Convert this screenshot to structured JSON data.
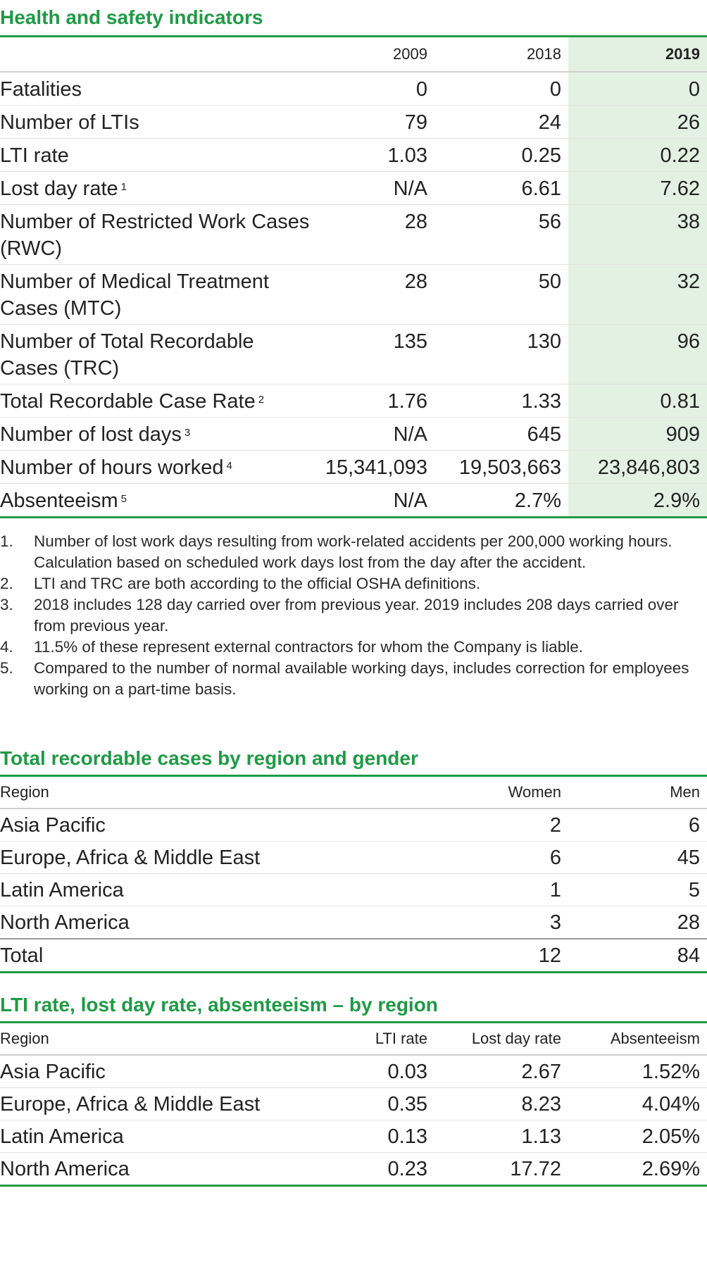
{
  "health": {
    "title": "Health and safety indicators",
    "years": [
      "2009",
      "2018",
      "2019"
    ],
    "rows": [
      {
        "label": "Fatalities",
        "sup": "",
        "v": [
          "0",
          "0",
          "0"
        ]
      },
      {
        "label": "Number of LTIs",
        "sup": "",
        "v": [
          "79",
          "24",
          "26"
        ]
      },
      {
        "label": "LTI rate",
        "sup": "",
        "v": [
          "1.03",
          "0.25",
          "0.22"
        ]
      },
      {
        "label": "Lost day rate",
        "sup": "1",
        "v": [
          "N/A",
          "6.61",
          "7.62"
        ]
      },
      {
        "label": "Number of Restricted Work Cases (RWC)",
        "sup": "",
        "v": [
          "28",
          "56",
          "38"
        ]
      },
      {
        "label": "Number of Medical Treatment Cases (MTC)",
        "sup": "",
        "v": [
          "28",
          "50",
          "32"
        ]
      },
      {
        "label": "Number of Total Recordable Cases (TRC)",
        "sup": "",
        "v": [
          "135",
          "130",
          "96"
        ]
      },
      {
        "label": "Total Recordable Case Rate",
        "sup": "2",
        "v": [
          "1.76",
          "1.33",
          "0.81"
        ]
      },
      {
        "label": "Number of lost days",
        "sup": "3",
        "v": [
          "N/A",
          "645",
          "909"
        ]
      },
      {
        "label": "Number of hours worked",
        "sup": "4",
        "v": [
          "15,341,093",
          "19,503,663",
          "23,846,803"
        ]
      },
      {
        "label": "Absenteeism",
        "sup": "5",
        "v": [
          "N/A",
          "2.7%",
          "2.9%"
        ]
      }
    ]
  },
  "footnotes": [
    {
      "n": "1.",
      "text": "Number of lost work days resulting from work-related accidents per 200,000 working hours. Calculation based on scheduled work days lost from the day after the accident."
    },
    {
      "n": "2.",
      "text": "LTI and TRC are both according to the official OSHA definitions."
    },
    {
      "n": "3.",
      "text": "2018 includes 128 day carried over from previous year. 2019 includes 208 days carried over from previous year."
    },
    {
      "n": "4.",
      "text": "11.5% of these represent external contractors for whom the Company is liable."
    },
    {
      "n": "5.",
      "text": "Compared to the number of normal available working days, includes correction for employees working on a part-time basis."
    }
  ],
  "trc": {
    "title": "Total recordable cases by region and gender",
    "headers": [
      "Region",
      "Women",
      "Men"
    ],
    "rows": [
      [
        "Asia Pacific",
        "2",
        "6"
      ],
      [
        "Europe, Africa & Middle East",
        "6",
        "45"
      ],
      [
        "Latin America",
        "1",
        "5"
      ],
      [
        "North America",
        "3",
        "28"
      ]
    ],
    "total": [
      "Total",
      "12",
      "84"
    ]
  },
  "lti": {
    "title": "LTI rate, lost day rate, absenteeism – by region",
    "headers": [
      "Region",
      "LTI rate",
      "Lost day rate",
      "Absenteeism"
    ],
    "rows": [
      [
        "Asia Pacific",
        "0.03",
        "2.67",
        "1.52%"
      ],
      [
        "Europe, Africa & Middle East",
        "0.35",
        "8.23",
        "4.04%"
      ],
      [
        "Latin America",
        "0.13",
        "1.13",
        "2.05%"
      ],
      [
        "North America",
        "0.23",
        "17.72",
        "2.69%"
      ]
    ]
  }
}
